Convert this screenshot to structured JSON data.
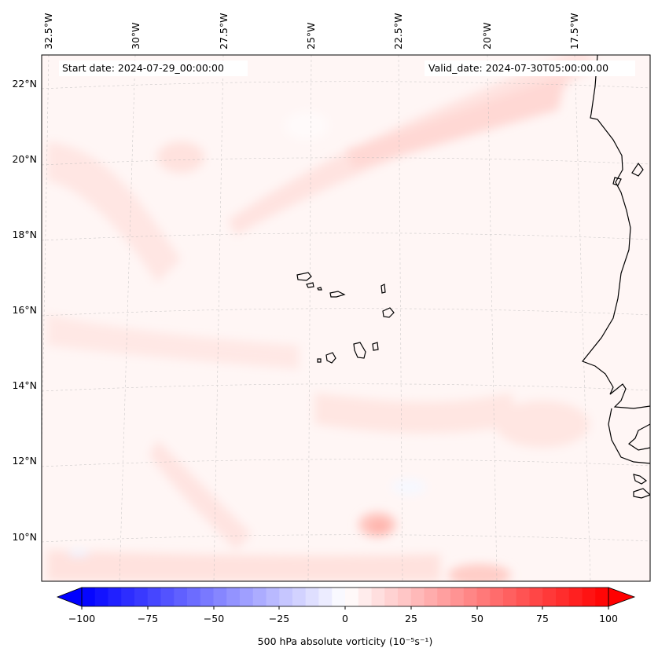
{
  "map": {
    "annotations": {
      "start_date": "Start date: 2024-07-29_00:00:00",
      "valid_date": "Valid_date: 2024-07-30T05:00:00.00"
    },
    "longitude_labels": [
      "32.5°W",
      "30°W",
      "27.5°W",
      "25°W",
      "22.5°W",
      "20°W",
      "17.5°W"
    ],
    "latitude_labels": [
      "22°N",
      "20°N",
      "18°N",
      "16°N",
      "14°N",
      "12°N",
      "10°N"
    ],
    "gridlines": true,
    "features": [
      "Cape Verde islands",
      "West African coastline"
    ]
  },
  "colorbar": {
    "label": "500 hPa absolute vorticity (10⁻⁵s⁻¹)",
    "ticks": [
      "−100",
      "−75",
      "−50",
      "−25",
      "0",
      "25",
      "50",
      "75",
      "100"
    ],
    "min": -100,
    "max": 100,
    "colormap": "bwr",
    "extend": "both",
    "colors": {
      "negative": "#0000ff",
      "zero": "#ffffff",
      "positive": "#ff0000"
    }
  }
}
